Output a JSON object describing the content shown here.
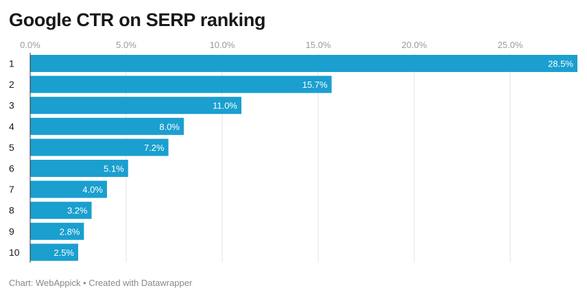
{
  "chart_data": {
    "type": "bar",
    "orientation": "horizontal",
    "title": "Google CTR on SERP ranking",
    "categories": [
      "1",
      "2",
      "3",
      "4",
      "5",
      "6",
      "7",
      "8",
      "9",
      "10"
    ],
    "values": [
      28.5,
      15.7,
      11.0,
      8.0,
      7.2,
      5.1,
      4.0,
      3.2,
      2.8,
      2.5
    ],
    "value_labels": [
      "28.5%",
      "15.7%",
      "11.0%",
      "8.0%",
      "7.2%",
      "5.1%",
      "4.0%",
      "3.2%",
      "2.8%",
      "2.5%"
    ],
    "x_ticks": [
      0,
      5,
      10,
      15,
      20,
      25
    ],
    "x_tick_labels": [
      "0.0%",
      "5.0%",
      "10.0%",
      "15.0%",
      "20.0%",
      "25.0%"
    ],
    "xlim": [
      0,
      28.5
    ],
    "grid": true,
    "bar_color": "#1a9fcf"
  },
  "footer": {
    "source": "Chart: WebAppick • Created with Datawrapper"
  }
}
